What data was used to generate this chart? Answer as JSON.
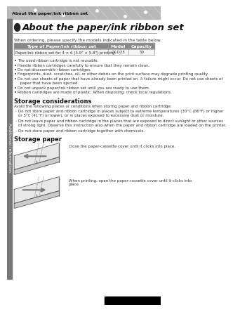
{
  "bg_color": "#ffffff",
  "header_bg": "#b8b8b8",
  "header_text": "About the paper/ink ribbon set",
  "sidebar_bg": "#777777",
  "sidebar_text": "Additional information",
  "page_title": "About the paper/ink ribbon set",
  "intro_text": "When ordering, please specify the models indicated in the table below.",
  "table_header_bg": "#888888",
  "table_cols": [
    "Type of Paper/Ink ribbon set",
    "Model",
    "Capacity"
  ],
  "table_row": [
    "Paper/ink ribbon set for 4 × 6 (3.9\" × 5.8\") printing",
    "CK-D25",
    "50"
  ],
  "bullets": [
    "The used ribbon cartridge is not reusable.",
    "Handle ribbon cartridges carefully to ensure that they remain clean.",
    "Do not disassemble ribbon cartridges.",
    "Fingerprints, dust, scratches, oil, or other debris on the print surface may degrade printing quality.",
    "Do not use sheets of paper that have already been printed on. A failure might occur. Do not use sheets of\n  paper that have been ejected.",
    "Do not unpack paper/ink ribbon set until you are ready to use them.",
    "Ribbon cartridges are made of plastic. When disposing, check local regulations."
  ],
  "storage_title": "Storage considerations",
  "storage_intro": "Avoid the following places or conditions when storing paper and ribbon cartridge:",
  "storage_bullets": [
    "Do not store paper and ribbon cartridge in places subject to extreme temperatures (30°C (86°F) or higher\nor 5°C (41°F) or lower), or in places exposed to excessive dust or moisture.",
    "Do not leave paper and ribbon cartridge in the places that are exposed to direct sunlight or other sources\nof strong light. Observe this instruction also when the paper and ribbon cartridge are loaded on the printer.",
    "Do not store paper and ribbon cartridge together with chemicals."
  ],
  "storage_paper_title": "Storage paper",
  "storage_paper_text1": "Close the paper-cassette cover until it clicks into place.",
  "storage_paper_text2": "When printing, open the paper-cassette cover until it clicks into\nplace."
}
